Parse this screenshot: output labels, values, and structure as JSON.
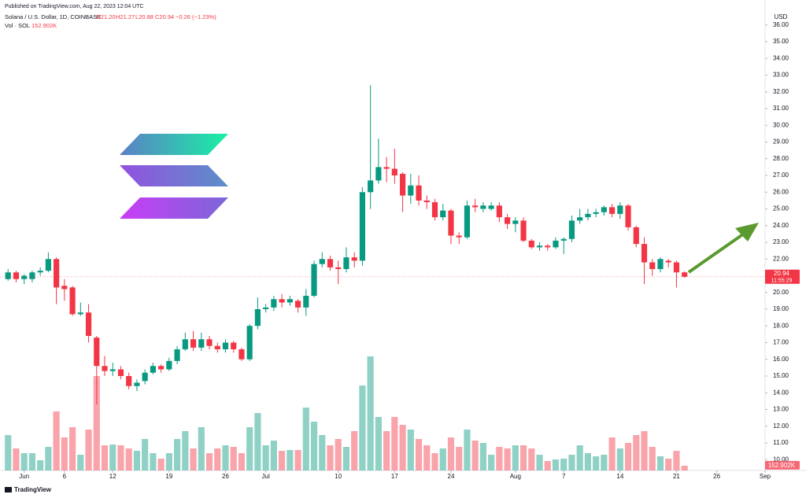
{
  "header": {
    "published": "Published on TradingView.com, Aug 22, 2023 12:04 UTC",
    "symbol": "Solana / U.S. Dollar, 1D, COINBASE",
    "open": "O21.20",
    "high": "H21.27",
    "low": "L20.88",
    "close": "C20.94",
    "change": "−0.26 (−1.23%)",
    "volume_name": "Vol · SOL",
    "volume_value": "152.902K"
  },
  "footer": "TradingView",
  "chart_data": {
    "type": "candlestick",
    "x": [
      "2023-05-30",
      "2023-05-31",
      "2023-06-01",
      "2023-06-02",
      "2023-06-03",
      "2023-06-04",
      "2023-06-05",
      "2023-06-06",
      "2023-06-07",
      "2023-06-08",
      "2023-06-09",
      "2023-06-10",
      "2023-06-11",
      "2023-06-12",
      "2023-06-13",
      "2023-06-14",
      "2023-06-15",
      "2023-06-16",
      "2023-06-17",
      "2023-06-18",
      "2023-06-19",
      "2023-06-20",
      "2023-06-21",
      "2023-06-22",
      "2023-06-23",
      "2023-06-24",
      "2023-06-25",
      "2023-06-26",
      "2023-06-27",
      "2023-06-28",
      "2023-06-29",
      "2023-06-30",
      "2023-07-01",
      "2023-07-02",
      "2023-07-03",
      "2023-07-04",
      "2023-07-05",
      "2023-07-06",
      "2023-07-07",
      "2023-07-08",
      "2023-07-09",
      "2023-07-10",
      "2023-07-11",
      "2023-07-12",
      "2023-07-13",
      "2023-07-14",
      "2023-07-15",
      "2023-07-16",
      "2023-07-17",
      "2023-07-18",
      "2023-07-19",
      "2023-07-20",
      "2023-07-21",
      "2023-07-22",
      "2023-07-23",
      "2023-07-24",
      "2023-07-25",
      "2023-07-26",
      "2023-07-27",
      "2023-07-28",
      "2023-07-29",
      "2023-07-30",
      "2023-07-31",
      "2023-08-01",
      "2023-08-02",
      "2023-08-03",
      "2023-08-04",
      "2023-08-05",
      "2023-08-06",
      "2023-08-07",
      "2023-08-08",
      "2023-08-09",
      "2023-08-10",
      "2023-08-11",
      "2023-08-12",
      "2023-08-13",
      "2023-08-14",
      "2023-08-15",
      "2023-08-16",
      "2023-08-17",
      "2023-08-18",
      "2023-08-19",
      "2023-08-20",
      "2023-08-21",
      "2023-08-22"
    ],
    "open": [
      20.8,
      21.2,
      20.8,
      20.8,
      21.2,
      21.3,
      22.0,
      20.4,
      20.3,
      18.7,
      18.8,
      17.3,
      15.6,
      15.3,
      15.4,
      15.0,
      14.4,
      14.7,
      15.2,
      15.6,
      15.4,
      15.9,
      16.6,
      17.2,
      16.7,
      17.2,
      16.8,
      16.6,
      17.0,
      16.6,
      16.0,
      18.0,
      19.0,
      19.1,
      19.6,
      19.4,
      19.5,
      19.1,
      19.8,
      21.7,
      22.0,
      21.5,
      21.4,
      22.1,
      21.9,
      26.0,
      26.7,
      27.5,
      27.4,
      27.1,
      25.8,
      26.4,
      25.5,
      25.4,
      24.5,
      24.9,
      23.4,
      23.3,
      25.2,
      25.0,
      25.0,
      25.2,
      24.5,
      24.1,
      24.3,
      23.1,
      22.7,
      22.8,
      22.7,
      23.1,
      23.2,
      24.3,
      24.5,
      24.7,
      24.8,
      25.1,
      24.7,
      25.2,
      23.9,
      22.9,
      21.8,
      21.4,
      21.9,
      21.8,
      21.2
    ],
    "high": [
      21.4,
      21.3,
      21.1,
      21.3,
      21.5,
      22.4,
      22.1,
      20.8,
      20.4,
      19.4,
      19.3,
      17.4,
      16.2,
      15.8,
      15.6,
      15.2,
      14.8,
      15.4,
      15.8,
      15.7,
      16.1,
      16.8,
      17.6,
      17.7,
      17.6,
      17.4,
      17.0,
      17.2,
      17.1,
      16.7,
      18.1,
      19.7,
      19.3,
      19.8,
      19.9,
      19.8,
      19.6,
      20.2,
      21.9,
      22.4,
      22.2,
      21.9,
      22.7,
      22.4,
      26.3,
      32.4,
      29.2,
      28.1,
      28.6,
      27.2,
      27.1,
      27.0,
      25.8,
      25.6,
      25.3,
      25.0,
      23.6,
      25.5,
      25.6,
      25.4,
      25.4,
      25.4,
      24.7,
      24.5,
      24.5,
      23.2,
      23.0,
      22.9,
      23.3,
      23.3,
      24.6,
      25.0,
      25.0,
      25.0,
      25.2,
      25.3,
      25.4,
      25.3,
      24.0,
      23.3,
      22.0,
      22.1,
      22.0,
      21.9,
      21.27
    ],
    "low": [
      20.7,
      20.6,
      20.5,
      20.6,
      21.0,
      21.2,
      19.3,
      19.5,
      18.6,
      18.6,
      17.0,
      13.3,
      15.0,
      15.0,
      14.8,
      14.2,
      14.1,
      14.5,
      15.1,
      15.2,
      15.3,
      15.7,
      16.5,
      16.5,
      16.5,
      16.6,
      16.4,
      16.4,
      16.4,
      15.9,
      15.9,
      17.8,
      18.8,
      18.9,
      19.1,
      19.2,
      18.8,
      18.6,
      19.7,
      21.5,
      21.3,
      20.5,
      21.2,
      21.5,
      21.6,
      25.0,
      26.5,
      26.6,
      26.5,
      24.8,
      25.3,
      25.2,
      25.0,
      24.3,
      24.3,
      22.9,
      22.9,
      23.2,
      24.8,
      24.8,
      24.9,
      24.2,
      23.8,
      23.6,
      23.0,
      22.6,
      22.5,
      22.5,
      22.6,
      22.3,
      23.0,
      24.1,
      24.3,
      24.5,
      24.6,
      24.5,
      24.4,
      23.7,
      22.7,
      20.5,
      21.0,
      21.2,
      21.5,
      20.3,
      20.88
    ],
    "close": [
      21.2,
      20.8,
      21.0,
      21.2,
      21.3,
      22.0,
      20.3,
      20.2,
      18.7,
      18.8,
      17.4,
      15.6,
      15.3,
      15.4,
      15.0,
      14.4,
      14.6,
      15.2,
      15.6,
      15.4,
      15.9,
      16.6,
      17.2,
      16.7,
      17.2,
      16.8,
      16.6,
      17.0,
      16.6,
      16.0,
      18.0,
      19.0,
      19.1,
      19.6,
      19.4,
      19.6,
      19.1,
      19.8,
      21.7,
      22.0,
      21.5,
      21.4,
      22.1,
      21.9,
      26.0,
      26.7,
      27.5,
      27.4,
      27.0,
      25.8,
      26.4,
      25.5,
      25.4,
      24.5,
      24.9,
      23.4,
      23.3,
      25.2,
      25.1,
      25.2,
      25.2,
      24.5,
      24.1,
      24.3,
      23.1,
      22.7,
      22.8,
      22.7,
      23.1,
      23.2,
      24.3,
      24.5,
      24.7,
      24.8,
      25.1,
      24.7,
      25.2,
      23.9,
      22.9,
      21.8,
      21.4,
      22.0,
      21.8,
      21.2,
      20.94
    ],
    "volume": [
      1125000,
      700000,
      550000,
      550000,
      325000,
      750000,
      1875000,
      1050000,
      1375000,
      500000,
      1300000,
      3000000,
      800000,
      825000,
      800000,
      700000,
      625000,
      1000000,
      550000,
      375000,
      550000,
      1000000,
      1250000,
      700000,
      1375000,
      550000,
      700000,
      800000,
      750000,
      550000,
      1375000,
      1825000,
      800000,
      950000,
      625000,
      650000,
      650000,
      2000000,
      1550000,
      1125000,
      800000,
      1000000,
      750000,
      1250000,
      2700000,
      3625000,
      1700000,
      1250000,
      1700000,
      1450000,
      1300000,
      1000000,
      800000,
      550000,
      700000,
      1050000,
      750000,
      1300000,
      950000,
      875000,
      500000,
      750000,
      700000,
      800000,
      800000,
      700000,
      500000,
      300000,
      350000,
      375000,
      500000,
      800000,
      550000,
      450000,
      500000,
      1050000,
      700000,
      875000,
      1125000,
      1250000,
      750000,
      450000,
      375000,
      625000,
      152902
    ],
    "up_color": "#089981",
    "down_color": "#f23645",
    "xlim": [
      "2023-05-29",
      "2023-09-01"
    ],
    "xticks": [
      {
        "value": "2023-06-01",
        "label": "Jun"
      },
      {
        "value": "2023-06-06",
        "label": "6"
      },
      {
        "value": "2023-06-12",
        "label": "12"
      },
      {
        "value": "2023-06-19",
        "label": "19"
      },
      {
        "value": "2023-06-26",
        "label": "26"
      },
      {
        "value": "2023-07-01",
        "label": "Jul"
      },
      {
        "value": "2023-07-10",
        "label": "10"
      },
      {
        "value": "2023-07-17",
        "label": "17"
      },
      {
        "value": "2023-07-24",
        "label": "24"
      },
      {
        "value": "2023-08-01",
        "label": "Aug"
      },
      {
        "value": "2023-08-07",
        "label": "7"
      },
      {
        "value": "2023-08-14",
        "label": "14"
      },
      {
        "value": "2023-08-21",
        "label": "21"
      },
      {
        "value": "2023-08-26",
        "label": "26"
      },
      {
        "value": "2023-09-01",
        "label": "Sep"
      }
    ],
    "ylim": [
      9.35,
      36.65
    ],
    "yticks": [
      {
        "value": 10,
        "label": "10.00"
      },
      {
        "value": 11,
        "label": "11.00"
      },
      {
        "value": 12,
        "label": "12.00"
      },
      {
        "value": 13,
        "label": "13.00"
      },
      {
        "value": 14,
        "label": "14.00"
      },
      {
        "value": 15,
        "label": "15.00"
      },
      {
        "value": 16,
        "label": "16.00"
      },
      {
        "value": 17,
        "label": "17.00"
      },
      {
        "value": 18,
        "label": "18.00"
      },
      {
        "value": 19,
        "label": "19.00"
      },
      {
        "value": 20,
        "label": "20.00"
      },
      {
        "value": 21,
        "label": "21.00"
      },
      {
        "value": 22,
        "label": "22.00"
      },
      {
        "value": 23,
        "label": "23.00"
      },
      {
        "value": 24,
        "label": "24.00"
      },
      {
        "value": 25,
        "label": "25.00"
      },
      {
        "value": 26,
        "label": "26.00"
      },
      {
        "value": 27,
        "label": "27.00"
      },
      {
        "value": 28,
        "label": "28.00"
      },
      {
        "value": 29,
        "label": "29.00"
      },
      {
        "value": 30,
        "label": "30.00"
      },
      {
        "value": 31,
        "label": "31.00"
      },
      {
        "value": 32,
        "label": "32.00"
      },
      {
        "value": 33,
        "label": "33.00"
      },
      {
        "value": 34,
        "label": "34.00"
      },
      {
        "value": 35,
        "label": "35.00"
      },
      {
        "value": 36,
        "label": "36.00"
      }
    ],
    "price_axis_label": "USD",
    "price_tag": "20.94",
    "countdown": "11:55:29",
    "volume_tag": "152.902K"
  }
}
